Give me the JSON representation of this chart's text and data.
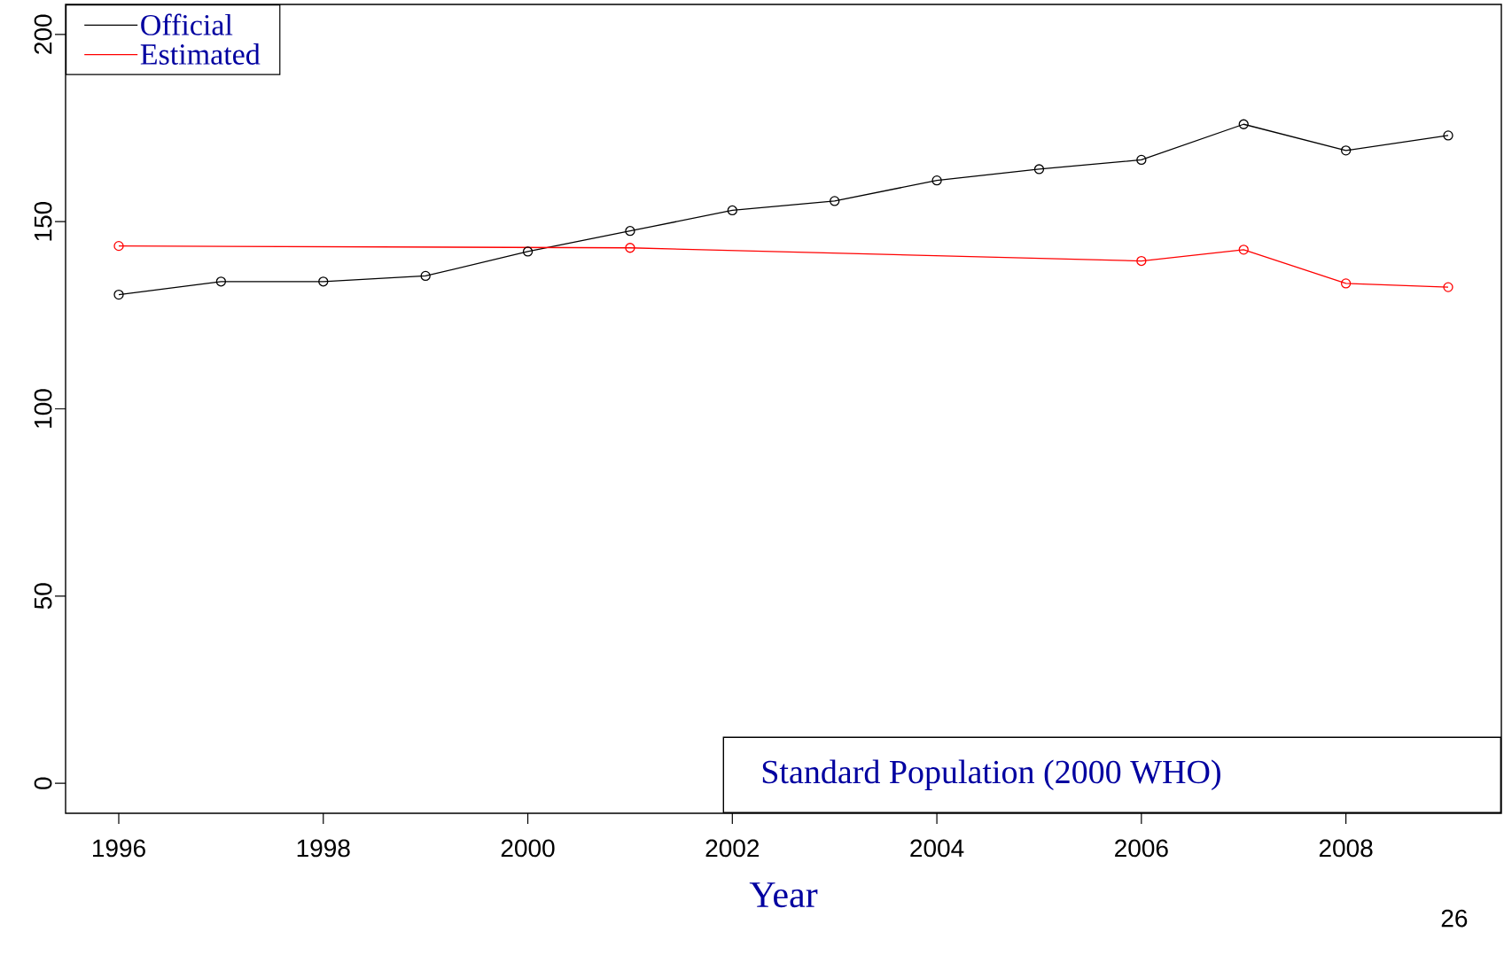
{
  "chart_data": {
    "type": "line",
    "xlabel": "Year",
    "x": [
      1996,
      1997,
      1998,
      1999,
      2000,
      2001,
      2002,
      2003,
      2004,
      2005,
      2006,
      2007,
      2008,
      2009
    ],
    "series": [
      {
        "name": "Official",
        "color": "#000000",
        "values": [
          130.5,
          134,
          134,
          135.5,
          142,
          147.5,
          153,
          155.5,
          161,
          164,
          166.5,
          176,
          169,
          173
        ]
      },
      {
        "name": "Estimated",
        "color": "#ff0000",
        "x": [
          1996,
          2001,
          2006,
          2007,
          2008,
          2009
        ],
        "values": [
          143.5,
          143,
          139.5,
          142.5,
          133.5,
          132.5
        ]
      }
    ],
    "xlim": [
      1995.48,
      2009.52
    ],
    "ylim": [
      -8,
      208
    ],
    "xticks": [
      1996,
      1998,
      2000,
      2002,
      2004,
      2006,
      2008
    ],
    "yticks": [
      0,
      50,
      100,
      150,
      200
    ],
    "marker": "circle",
    "line_style": "solid",
    "grid": false,
    "legend": "top left",
    "annotations": [
      "Standard Population (2000 WHO)",
      "26"
    ]
  }
}
